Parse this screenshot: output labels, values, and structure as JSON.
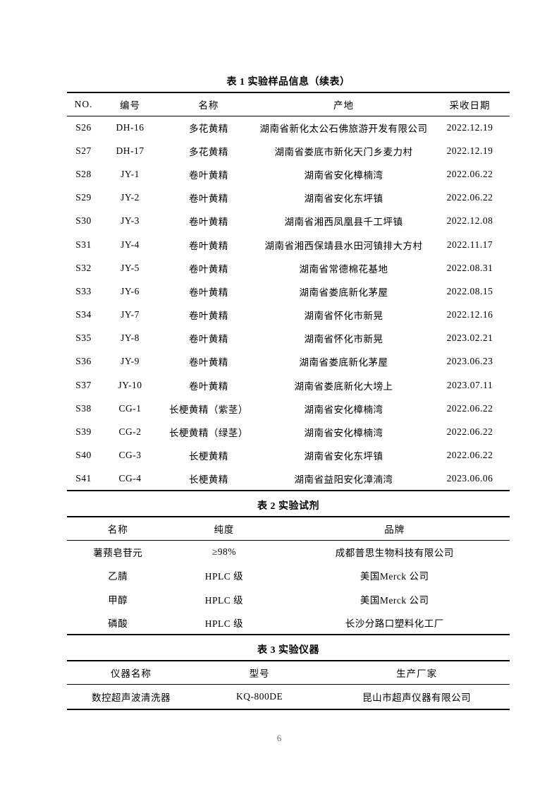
{
  "page": {
    "number": "6"
  },
  "tables": [
    {
      "id": "table1",
      "title": "表 1 实验样品信息（续表）",
      "columns": [
        "NO.",
        "编号",
        "名称",
        "产地",
        "采收日期"
      ],
      "rows": [
        [
          "S26",
          "DH-16",
          "多花黄精",
          "湖南省新化太公石佛旅游开发有限公司",
          "2022.12.19"
        ],
        [
          "S27",
          "DH-17",
          "多花黄精",
          "湖南省娄底市新化天门乡麦力村",
          "2022.12.19"
        ],
        [
          "S28",
          "JY-1",
          "卷叶黄精",
          "湖南省安化樟楠湾",
          "2022.06.22"
        ],
        [
          "S29",
          "JY-2",
          "卷叶黄精",
          "湖南省安化东坪镇",
          "2022.06.22"
        ],
        [
          "S30",
          "JY-3",
          "卷叶黄精",
          "湖南省湘西凤凰县千工坪镇",
          "2022.12.08"
        ],
        [
          "S31",
          "JY-4",
          "卷叶黄精",
          "湖南省湘西保靖县水田河镇排大方村",
          "2022.11.17"
        ],
        [
          "S32",
          "JY-5",
          "卷叶黄精",
          "湖南省常德棉花基地",
          "2022.08.31"
        ],
        [
          "S33",
          "JY-6",
          "卷叶黄精",
          "湖南省娄底新化茅屋",
          "2022.08.15"
        ],
        [
          "S34",
          "JY-7",
          "卷叶黄精",
          "湖南省怀化市新晃",
          "2022.12.16"
        ],
        [
          "S35",
          "JY-8",
          "卷叶黄精",
          "湖南省怀化市新晃",
          "2023.02.21"
        ],
        [
          "S36",
          "JY-9",
          "卷叶黄精",
          "湖南省娄底新化茅屋",
          "2023.06.23"
        ],
        [
          "S37",
          "JY-10",
          "卷叶黄精",
          "湖南省娄底新化大塝上",
          "2023.07.11"
        ],
        [
          "S38",
          "CG-1",
          "长梗黄精（紫茎）",
          "湖南省安化樟楠湾",
          "2022.06.22"
        ],
        [
          "S39",
          "CG-2",
          "长梗黄精（绿茎）",
          "湖南省安化樟楠湾",
          "2022.06.22"
        ],
        [
          "S40",
          "CG-3",
          "长梗黄精",
          "湖南省安化东坪镇",
          "2022.06.22"
        ],
        [
          "S41",
          "CG-4",
          "长梗黄精",
          "湖南省益阳安化漳湳湾",
          "2023.06.06"
        ]
      ]
    },
    {
      "id": "table2",
      "title": "表 2 实验试剂",
      "columns": [
        "名称",
        "纯度",
        "品牌"
      ],
      "rows": [
        [
          "薯蓣皂苷元",
          "≥98%",
          "成都普思生物科技有限公司"
        ],
        [
          "乙腈",
          "HPLC 级",
          "美国Merck 公司"
        ],
        [
          "甲醇",
          "HPLC 级",
          "美国Merck 公司"
        ],
        [
          "磷酸",
          "HPLC 级",
          "长沙分路口塑料化工厂"
        ]
      ]
    },
    {
      "id": "table3",
      "title": "表 3 实验仪器",
      "columns": [
        "仪器名称",
        "型号",
        "生产厂家"
      ],
      "rows": [
        [
          "数控超声波清洗器",
          "KQ-800DE",
          "昆山市超声仪器有限公司"
        ]
      ]
    }
  ]
}
